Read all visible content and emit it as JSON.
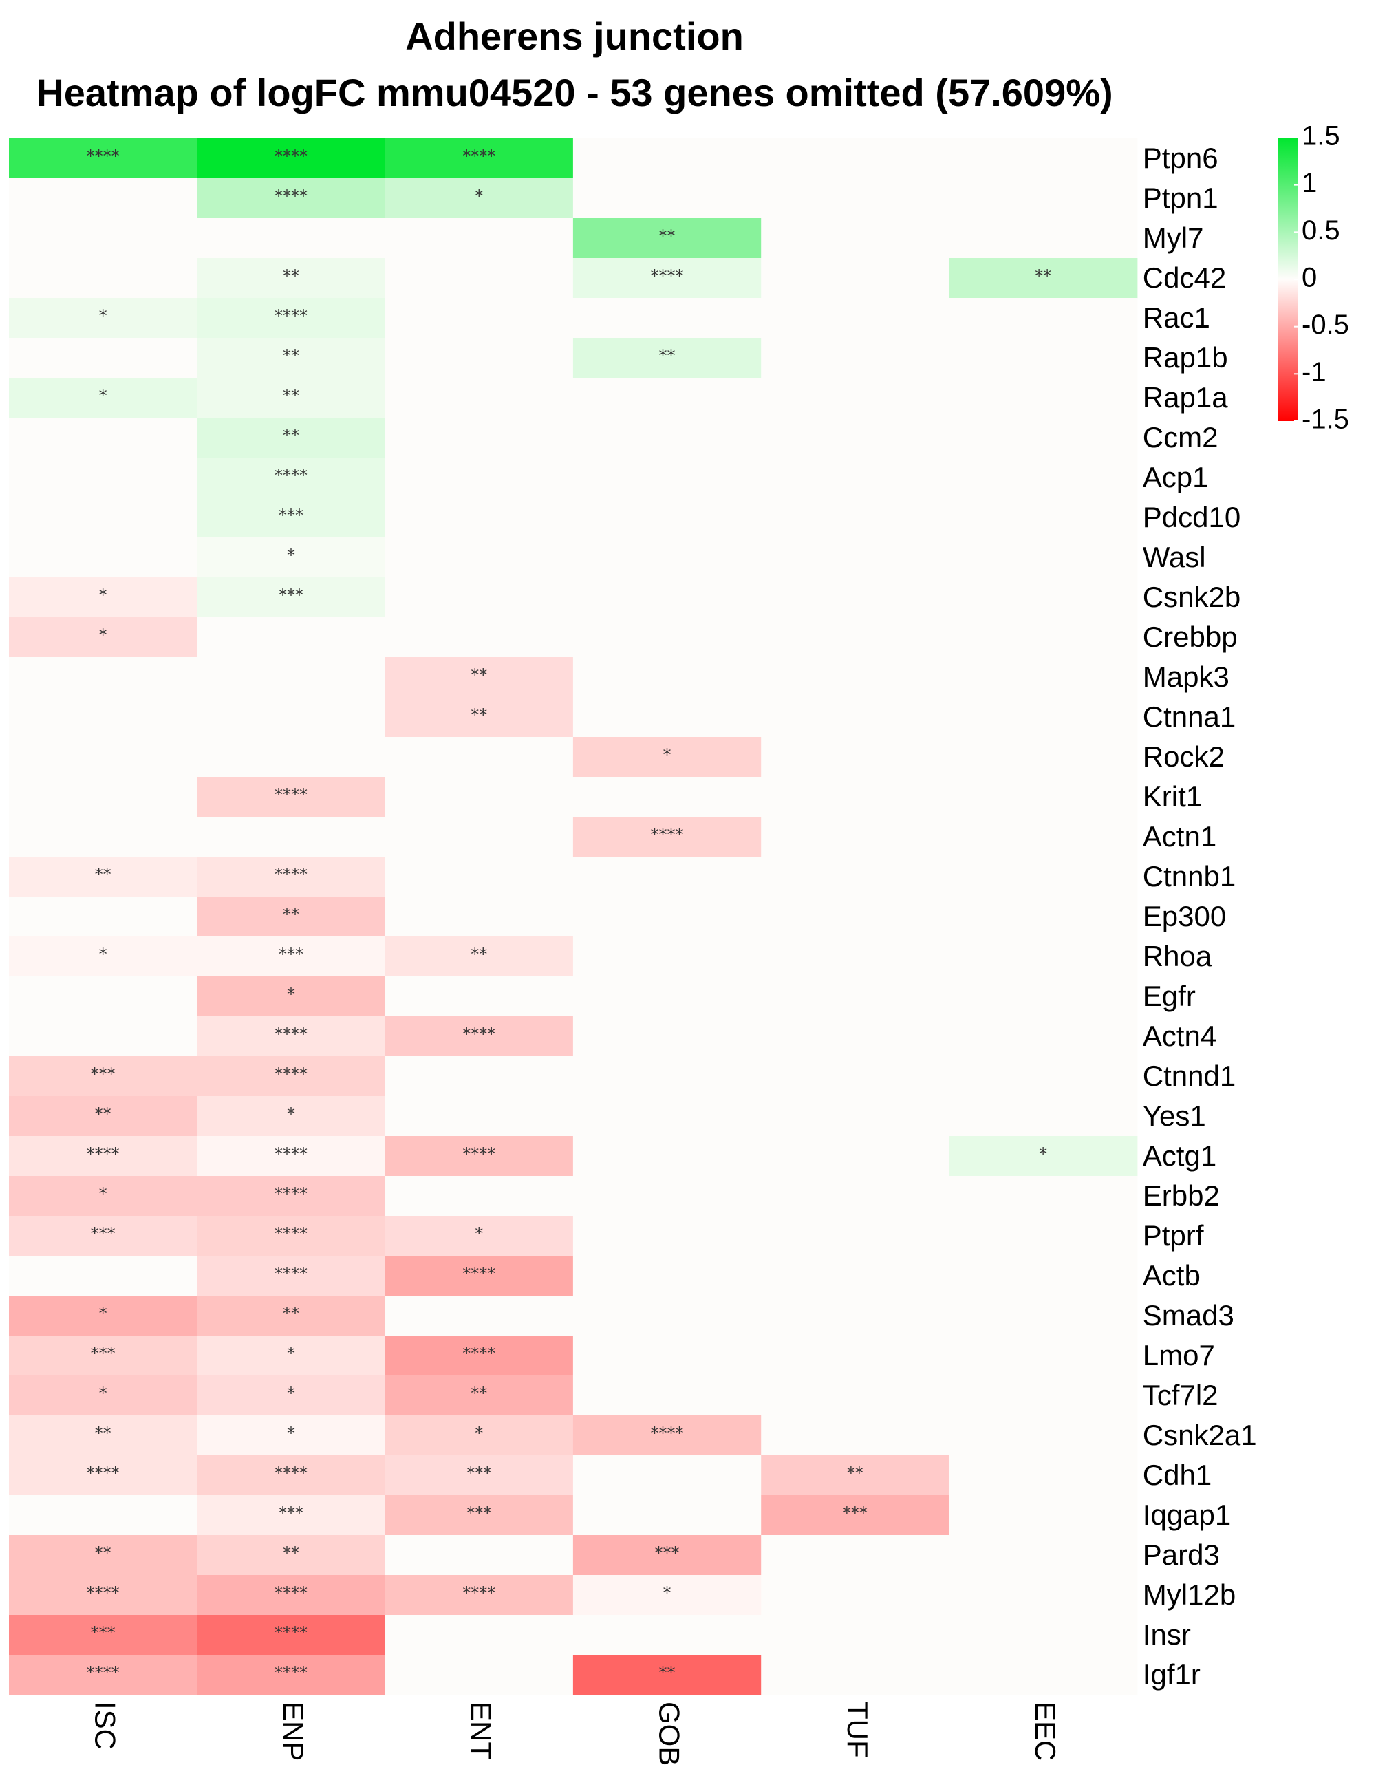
{
  "chart_data": {
    "type": "heatmap",
    "title": "Adherens junction",
    "subtitle": "Heatmap of logFC mmu04520 - 53 genes omitted (57.609%)",
    "columns": [
      "ISC",
      "ENP",
      "ENT",
      "GOB",
      "TUF",
      "EEC"
    ],
    "rows": [
      "Ptpn6",
      "Ptpn1",
      "Myl7",
      "Cdc42",
      "Rac1",
      "Rap1b",
      "Rap1a",
      "Ccm2",
      "Acp1",
      "Pdcd10",
      "Wasl",
      "Csnk2b",
      "Crebbp",
      "Mapk3",
      "Ctnna1",
      "Rock2",
      "Krit1",
      "Actn1",
      "Ctnnb1",
      "Ep300",
      "Rhoa",
      "Egfr",
      "Actn4",
      "Ctnnd1",
      "Yes1",
      "Actg1",
      "Erbb2",
      "Ptprf",
      "Actb",
      "Smad3",
      "Lmo7",
      "Tcf7l2",
      "Csnk2a1",
      "Cdh1",
      "Iqgap1",
      "Pard3",
      "Myl12b",
      "Insr",
      "Igf1r"
    ],
    "values": [
      [
        1.2,
        1.5,
        1.3,
        0,
        0,
        0
      ],
      [
        0,
        0.4,
        0.3,
        0,
        0,
        0
      ],
      [
        0,
        0,
        0,
        0.7,
        0,
        0
      ],
      [
        0,
        0.1,
        0,
        0.15,
        0,
        0.35
      ],
      [
        0.1,
        0.15,
        0,
        0,
        0,
        0
      ],
      [
        0,
        0.1,
        0,
        0.2,
        0,
        0
      ],
      [
        0.15,
        0.1,
        0,
        0,
        0,
        0
      ],
      [
        0,
        0.2,
        0,
        0,
        0,
        0
      ],
      [
        0,
        0.15,
        0,
        0,
        0,
        0
      ],
      [
        0,
        0.15,
        0,
        0,
        0,
        0
      ],
      [
        0,
        0.05,
        0,
        0,
        0,
        0
      ],
      [
        -0.1,
        0.1,
        0,
        0,
        0,
        0
      ],
      [
        -0.2,
        0,
        0,
        0,
        0,
        0
      ],
      [
        0,
        0,
        -0.2,
        0,
        0,
        0
      ],
      [
        0,
        0,
        -0.2,
        0,
        0,
        0
      ],
      [
        0,
        0,
        0,
        -0.25,
        0,
        0
      ],
      [
        0,
        -0.25,
        0,
        0,
        0,
        0
      ],
      [
        0,
        0,
        0,
        -0.25,
        0,
        0
      ],
      [
        -0.1,
        -0.15,
        0,
        0,
        0,
        0
      ],
      [
        0,
        -0.3,
        0,
        0,
        0,
        0
      ],
      [
        -0.05,
        -0.05,
        -0.15,
        0,
        0,
        0
      ],
      [
        0,
        -0.35,
        0,
        0,
        0,
        0
      ],
      [
        0,
        -0.15,
        -0.3,
        0,
        0,
        0
      ],
      [
        -0.25,
        -0.25,
        0,
        0,
        0,
        0
      ],
      [
        -0.3,
        -0.15,
        0,
        0,
        0,
        0
      ],
      [
        -0.15,
        -0.05,
        -0.35,
        0,
        0,
        0.15
      ],
      [
        -0.3,
        -0.3,
        0,
        0,
        0,
        0
      ],
      [
        -0.2,
        -0.25,
        -0.2,
        0,
        0,
        0
      ],
      [
        0,
        -0.2,
        -0.5,
        0,
        0,
        0
      ],
      [
        -0.45,
        -0.35,
        0,
        0,
        0,
        0
      ],
      [
        -0.25,
        -0.15,
        -0.55,
        0,
        0,
        0
      ],
      [
        -0.3,
        -0.2,
        -0.45,
        0,
        0,
        0
      ],
      [
        -0.15,
        -0.05,
        -0.25,
        -0.35,
        0,
        0
      ],
      [
        -0.15,
        -0.25,
        -0.2,
        0,
        -0.3,
        0
      ],
      [
        0,
        -0.1,
        -0.35,
        0,
        -0.45,
        0
      ],
      [
        -0.35,
        -0.25,
        0,
        -0.45,
        0,
        0
      ],
      [
        -0.35,
        -0.45,
        -0.35,
        -0.05,
        0,
        0
      ],
      [
        -0.7,
        -0.85,
        0,
        0,
        0,
        0
      ],
      [
        -0.45,
        -0.55,
        0,
        -0.9,
        0,
        0
      ]
    ],
    "significance": [
      [
        "****",
        "****",
        "****",
        "",
        "",
        ""
      ],
      [
        "",
        "****",
        "*",
        "",
        "",
        ""
      ],
      [
        "",
        "",
        "",
        "**",
        "",
        ""
      ],
      [
        "",
        "**",
        "",
        "****",
        "",
        "**"
      ],
      [
        "*",
        "****",
        "",
        "",
        "",
        ""
      ],
      [
        "",
        "**",
        "",
        "**",
        "",
        ""
      ],
      [
        "*",
        "**",
        "",
        "",
        "",
        ""
      ],
      [
        "",
        "**",
        "",
        "",
        "",
        ""
      ],
      [
        "",
        "****",
        "",
        "",
        "",
        ""
      ],
      [
        "",
        "***",
        "",
        "",
        "",
        ""
      ],
      [
        "",
        "*",
        "",
        "",
        "",
        ""
      ],
      [
        "*",
        "***",
        "",
        "",
        "",
        ""
      ],
      [
        "*",
        "",
        "",
        "",
        "",
        ""
      ],
      [
        "",
        "",
        "**",
        "",
        "",
        ""
      ],
      [
        "",
        "",
        "**",
        "",
        "",
        ""
      ],
      [
        "",
        "",
        "",
        "*",
        "",
        ""
      ],
      [
        "",
        "****",
        "",
        "",
        "",
        ""
      ],
      [
        "",
        "",
        "",
        "****",
        "",
        ""
      ],
      [
        "**",
        "****",
        "",
        "",
        "",
        ""
      ],
      [
        "",
        "**",
        "",
        "",
        "",
        ""
      ],
      [
        "*",
        "***",
        "**",
        "",
        "",
        ""
      ],
      [
        "",
        "*",
        "",
        "",
        "",
        ""
      ],
      [
        "",
        "****",
        "****",
        "",
        "",
        ""
      ],
      [
        "***",
        "****",
        "",
        "",
        "",
        ""
      ],
      [
        "**",
        "*",
        "",
        "",
        "",
        ""
      ],
      [
        "****",
        "****",
        "****",
        "",
        "",
        "*"
      ],
      [
        "*",
        "****",
        "",
        "",
        "",
        ""
      ],
      [
        "***",
        "****",
        "*",
        "",
        "",
        ""
      ],
      [
        "",
        "****",
        "****",
        "",
        "",
        ""
      ],
      [
        "*",
        "**",
        "",
        "",
        "",
        ""
      ],
      [
        "***",
        "*",
        "****",
        "",
        "",
        ""
      ],
      [
        "*",
        "*",
        "**",
        "",
        "",
        ""
      ],
      [
        "**",
        "*",
        "*",
        "****",
        "",
        ""
      ],
      [
        "****",
        "****",
        "***",
        "",
        "**",
        ""
      ],
      [
        "",
        "***",
        "***",
        "",
        "***",
        ""
      ],
      [
        "**",
        "**",
        "",
        "***",
        "",
        ""
      ],
      [
        "****",
        "****",
        "****",
        "*",
        "",
        ""
      ],
      [
        "***",
        "****",
        "",
        "",
        "",
        ""
      ],
      [
        "****",
        "****",
        "",
        "**",
        "",
        ""
      ]
    ],
    "legend": {
      "ticks": [
        1.5,
        1,
        0.5,
        0,
        -0.5,
        -1,
        -1.5
      ],
      "tick_labels": [
        "1.5",
        "1",
        "0.5",
        "0",
        "-0.5",
        "-1",
        "-1.5"
      ],
      "range": [
        -1.5,
        1.5
      ],
      "placement": "top-right"
    },
    "colors": {
      "high": "#00e62e",
      "mid": "#fffdfb",
      "low": "#ff0000",
      "empty": "#fdfcfa",
      "stars": "#333333"
    }
  }
}
